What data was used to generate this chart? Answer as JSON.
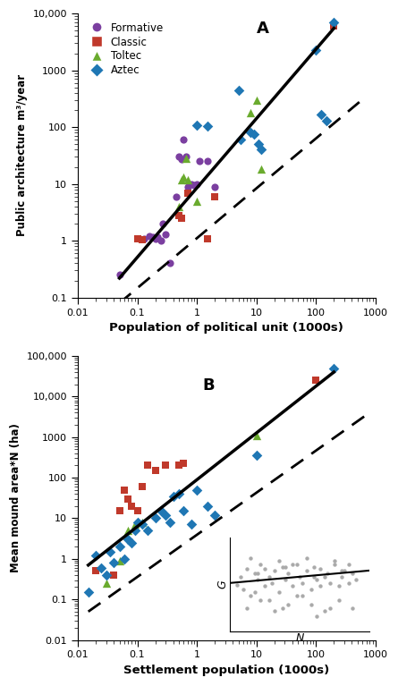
{
  "panel_A": {
    "title": "A",
    "xlabel": "Population of political unit (1000s)",
    "ylabel": "Public architecture m³/year",
    "xlim": [
      0.01,
      1000
    ],
    "ylim": [
      0.1,
      10000
    ],
    "formative": {
      "color": "#7B3FA0",
      "marker": "o",
      "x": [
        0.05,
        0.13,
        0.16,
        0.18,
        0.2,
        0.22,
        0.25,
        0.27,
        0.3,
        0.35,
        0.45,
        0.5,
        0.55,
        0.6,
        0.65,
        0.7,
        0.8,
        0.9,
        1.0,
        1.1,
        1.5,
        2.0
      ],
      "y": [
        0.25,
        1.1,
        1.2,
        1.15,
        1.1,
        1.15,
        1.0,
        2.0,
        1.3,
        0.4,
        6.0,
        30.0,
        27.0,
        60.0,
        30.0,
        9.0,
        10.0,
        9.5,
        10.0,
        25.0,
        25.0,
        9.0
      ]
    },
    "classic": {
      "color": "#C0392B",
      "marker": "s",
      "x": [
        0.1,
        0.12,
        0.5,
        0.55,
        0.7,
        1.5,
        2.0,
        200.0
      ],
      "y": [
        1.1,
        1.05,
        2.8,
        2.5,
        7.0,
        1.1,
        6.0,
        6000.0
      ]
    },
    "toltec": {
      "color": "#6AAB2E",
      "marker": "^",
      "x": [
        0.5,
        0.55,
        0.6,
        0.65,
        0.7,
        1.0,
        8.0,
        10.0,
        12.0
      ],
      "y": [
        4.0,
        12.0,
        13.0,
        28.0,
        12.0,
        5.0,
        180.0,
        300.0,
        18.0
      ]
    },
    "aztec": {
      "color": "#1F77B4",
      "marker": "D",
      "x": [
        1.0,
        1.5,
        5.0,
        5.5,
        8.0,
        9.0,
        11.0,
        12.0,
        100.0,
        120.0,
        150.0,
        200.0
      ],
      "y": [
        110.0,
        105.0,
        450.0,
        60.0,
        80.0,
        75.0,
        50.0,
        40.0,
        2300.0,
        170.0,
        130.0,
        7000.0
      ]
    },
    "line_solid": {
      "x": [
        0.05,
        200.0
      ],
      "y": [
        0.22,
        5500.0
      ]
    },
    "line_dashed": {
      "x": [
        0.05,
        700.0
      ],
      "y": [
        0.08,
        350.0
      ]
    }
  },
  "panel_B": {
    "title": "B",
    "xlabel": "Settlement population (1000s)",
    "ylabel": "Mean mound area*Ν (ha)",
    "xlim": [
      0.01,
      1000
    ],
    "ylim": [
      0.01,
      100000
    ],
    "classic": {
      "color": "#C0392B",
      "marker": "s",
      "x": [
        0.02,
        0.04,
        0.05,
        0.06,
        0.07,
        0.08,
        0.1,
        0.12,
        0.15,
        0.2,
        0.3,
        0.5,
        0.6,
        100.0
      ],
      "y": [
        0.5,
        0.4,
        15.0,
        50.0,
        30.0,
        20.0,
        15.0,
        60.0,
        200.0,
        150.0,
        200.0,
        200.0,
        220.0,
        25000.0
      ]
    },
    "toltec": {
      "color": "#6AAB2E",
      "marker": "^",
      "x": [
        0.03,
        0.05,
        0.07,
        0.09,
        0.12,
        10.0
      ],
      "y": [
        0.25,
        0.9,
        5.0,
        7.0,
        8.0,
        1100.0
      ]
    },
    "aztec": {
      "color": "#1F77B4",
      "marker": "D",
      "x": [
        0.015,
        0.02,
        0.025,
        0.03,
        0.035,
        0.04,
        0.05,
        0.06,
        0.07,
        0.08,
        0.09,
        0.1,
        0.12,
        0.15,
        0.2,
        0.25,
        0.3,
        0.35,
        0.4,
        0.5,
        0.6,
        0.8,
        1.0,
        1.5,
        2.0,
        10.0,
        200.0
      ],
      "y": [
        0.15,
        1.2,
        0.6,
        0.4,
        1.5,
        0.8,
        2.0,
        1.0,
        3.0,
        2.5,
        5.0,
        8.0,
        7.0,
        5.0,
        10.0,
        15.0,
        12.0,
        8.0,
        35.0,
        40.0,
        15.0,
        7.0,
        50.0,
        20.0,
        12.0,
        350.0,
        50000.0
      ]
    },
    "line_solid": {
      "x": [
        0.015,
        200.0
      ],
      "y": [
        0.7,
        40000.0
      ]
    },
    "line_dashed": {
      "x": [
        0.015,
        700.0
      ],
      "y": [
        0.05,
        3500.0
      ]
    },
    "inset": {
      "x_label": "N",
      "y_label": "G",
      "scatter_x": [
        0.05,
        0.08,
        0.1,
        0.12,
        0.15,
        0.18,
        0.2,
        0.22,
        0.25,
        0.28,
        0.3,
        0.32,
        0.35,
        0.38,
        0.4,
        0.42,
        0.45,
        0.48,
        0.5,
        0.52,
        0.55,
        0.58,
        0.6,
        0.62,
        0.65,
        0.68,
        0.7,
        0.72,
        0.75,
        0.78,
        0.8,
        0.82,
        0.85,
        0.88,
        0.9,
        0.12,
        0.22,
        0.32,
        0.42,
        0.52,
        0.62,
        0.72,
        0.18,
        0.28,
        0.38,
        0.48,
        0.58,
        0.68,
        0.78,
        0.88,
        0.15,
        0.25,
        0.35,
        0.45,
        0.55,
        0.65,
        0.75,
        0.85,
        0.2,
        0.4,
        0.6,
        0.8
      ],
      "scatter_y": [
        0.45,
        0.5,
        0.42,
        0.55,
        0.38,
        0.52,
        0.48,
        0.58,
        0.44,
        0.5,
        0.46,
        0.54,
        0.4,
        0.56,
        0.48,
        0.52,
        0.44,
        0.58,
        0.5,
        0.46,
        0.54,
        0.42,
        0.56,
        0.48,
        0.44,
        0.5,
        0.52,
        0.46,
        0.58,
        0.44,
        0.5,
        0.54,
        0.46,
        0.52,
        0.48,
        0.3,
        0.35,
        0.28,
        0.32,
        0.38,
        0.25,
        0.3,
        0.4,
        0.35,
        0.3,
        0.38,
        0.32,
        0.28,
        0.35,
        0.3,
        0.62,
        0.55,
        0.6,
        0.58,
        0.62,
        0.55,
        0.6,
        0.58,
        0.52,
        0.56,
        0.5,
        0.54
      ],
      "line_x": [
        0.0,
        1.0
      ],
      "line_y": [
        0.46,
        0.54
      ]
    }
  },
  "legend": {
    "formative_label": "Formative",
    "classic_label": "Classic",
    "toltec_label": "Toltec",
    "aztec_label": "Aztec"
  },
  "colors": {
    "formative": "#7B3FA0",
    "classic": "#C0392B",
    "toltec": "#6AAB2E",
    "aztec": "#1F77B4",
    "background": "#ffffff"
  }
}
